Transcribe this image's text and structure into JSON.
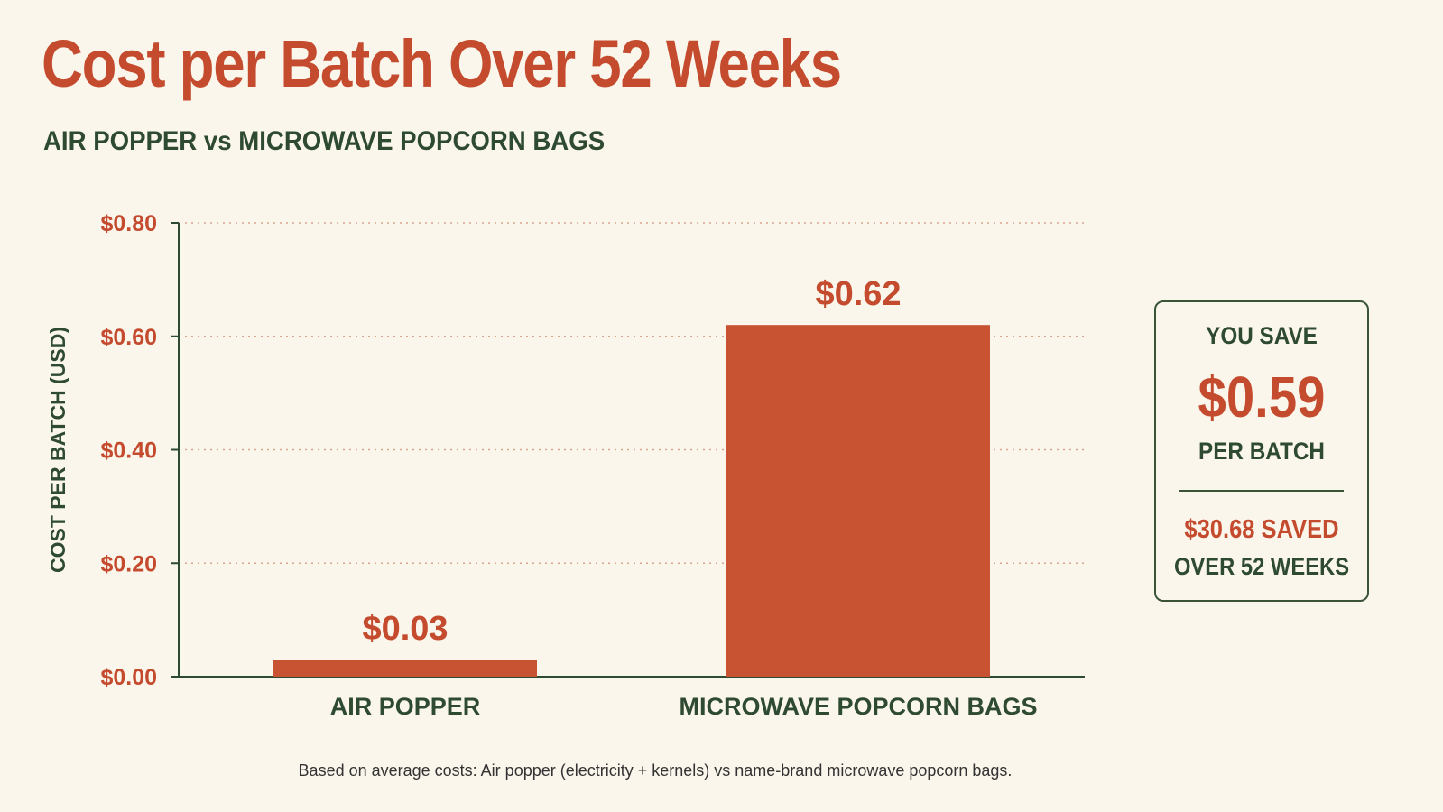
{
  "header": {
    "title": "Cost per Batch Over 52 Weeks",
    "subtitle": "AIR POPPER vs MICROWAVE POPCORN BAGS"
  },
  "chart_data": {
    "type": "bar",
    "categories": [
      "AIR POPPER",
      "MICROWAVE POPCORN BAGS"
    ],
    "values": [
      0.03,
      0.62
    ],
    "data_labels": [
      "$0.03",
      "$0.62"
    ],
    "ylabel": "COST PER BATCH (USD)",
    "xlabel": "",
    "ylim": [
      0,
      0.8
    ],
    "yticks": [
      0,
      0.2,
      0.4,
      0.6,
      0.8
    ],
    "ytick_labels": [
      "$0.00",
      "$0.20",
      "$0.40",
      "$0.60",
      "$0.80"
    ],
    "grid": "horizontal dotted",
    "colors": {
      "bar": "#c75332",
      "label": "#c44b2e",
      "axis": "#2e4a30",
      "grid": "#d8a58e"
    }
  },
  "savings": {
    "line1": "YOU SAVE",
    "amount": "$0.59",
    "line3": "PER BATCH",
    "total": "$30.68 SAVED",
    "period": "OVER 52 WEEKS"
  },
  "footnote": "Based on average costs: Air popper (electricity + kernels) vs name-brand microwave popcorn bags."
}
